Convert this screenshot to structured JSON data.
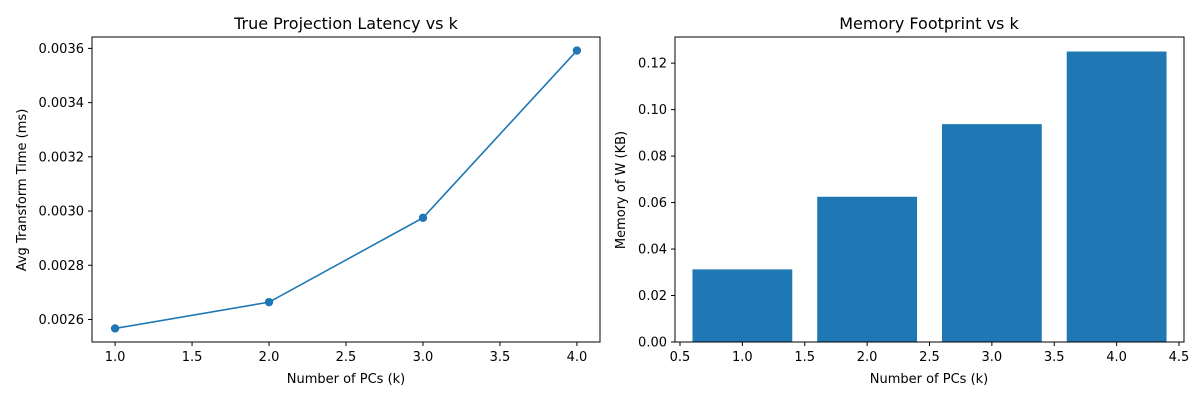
{
  "chart_data": [
    {
      "type": "line",
      "title": "True Projection Latency vs k",
      "xlabel": "Number of PCs (k)",
      "ylabel": "Avg Transform Time (ms)",
      "x": [
        1,
        2,
        3,
        4
      ],
      "series": [
        {
          "values": [
            0.002567,
            0.002664,
            0.002975,
            0.003592
          ],
          "color": "#1f77b4",
          "marker": "circle"
        }
      ],
      "xlim": [
        0.85,
        4.15
      ],
      "ylim": [
        0.002517,
        0.003642
      ],
      "xticks": [
        1.0,
        1.5,
        2.0,
        2.5,
        3.0,
        3.5,
        4.0
      ],
      "xtick_labels": [
        "1.0",
        "1.5",
        "2.0",
        "2.5",
        "3.0",
        "3.5",
        "4.0"
      ],
      "yticks": [
        0.0026,
        0.0028,
        0.003,
        0.0032,
        0.0034,
        0.0036
      ],
      "ytick_labels": [
        "0.0026",
        "0.0028",
        "0.0030",
        "0.0032",
        "0.0034",
        "0.0036"
      ],
      "grid": false
    },
    {
      "type": "bar",
      "title": "Memory Footprint vs k",
      "xlabel": "Number of PCs (k)",
      "ylabel": "Memory of W (KB)",
      "x": [
        1,
        2,
        3,
        4
      ],
      "values": [
        0.03125,
        0.0625,
        0.09375,
        0.125
      ],
      "bar_width": 0.8,
      "color": "#1f77b4",
      "xlim": [
        0.46,
        4.54
      ],
      "ylim": [
        0,
        0.13125
      ],
      "xticks": [
        0.5,
        1.0,
        1.5,
        2.0,
        2.5,
        3.0,
        3.5,
        4.0,
        4.5
      ],
      "xtick_labels": [
        "0.5",
        "1.0",
        "1.5",
        "2.0",
        "2.5",
        "3.0",
        "3.5",
        "4.0",
        "4.5"
      ],
      "yticks": [
        0,
        0.02,
        0.04,
        0.06,
        0.08,
        0.1,
        0.12
      ],
      "ytick_labels": [
        "0.00",
        "0.02",
        "0.04",
        "0.06",
        "0.08",
        "0.10",
        "0.12"
      ],
      "grid": false
    }
  ]
}
